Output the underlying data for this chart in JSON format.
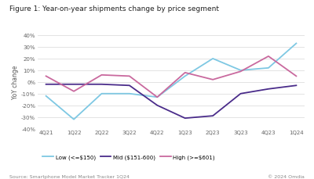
{
  "title": "Figure 1: Year-on-year shipments change by price segment",
  "ylabel": "YoY change",
  "source": "Source: Smartphone Model Market Tracker 1Q24",
  "copyright": "© 2024 Omdia",
  "categories": [
    "4Q21",
    "1Q22",
    "2Q22",
    "3Q22",
    "4Q22",
    "1Q23",
    "2Q23",
    "3Q23",
    "4Q23",
    "1Q24"
  ],
  "low": [
    -12,
    -32,
    -10,
    -10,
    -13,
    5,
    20,
    10,
    12,
    33
  ],
  "mid": [
    -2,
    -2,
    -2,
    -3,
    -20,
    -31,
    -29,
    -10,
    -6,
    -3
  ],
  "high": [
    5,
    -8,
    6,
    5,
    -13,
    8,
    2,
    9,
    22,
    5
  ],
  "low_color": "#7ec8e3",
  "mid_color": "#4a2c8a",
  "high_color": "#c9699e",
  "ylim": [
    -40,
    40
  ],
  "yticks": [
    -40,
    -30,
    -20,
    -10,
    0,
    10,
    20,
    30,
    40
  ],
  "background_color": "#ffffff",
  "legend_labels": [
    "Low (<=$150)",
    "Mid ($151-600)",
    "High (>=$601)"
  ]
}
